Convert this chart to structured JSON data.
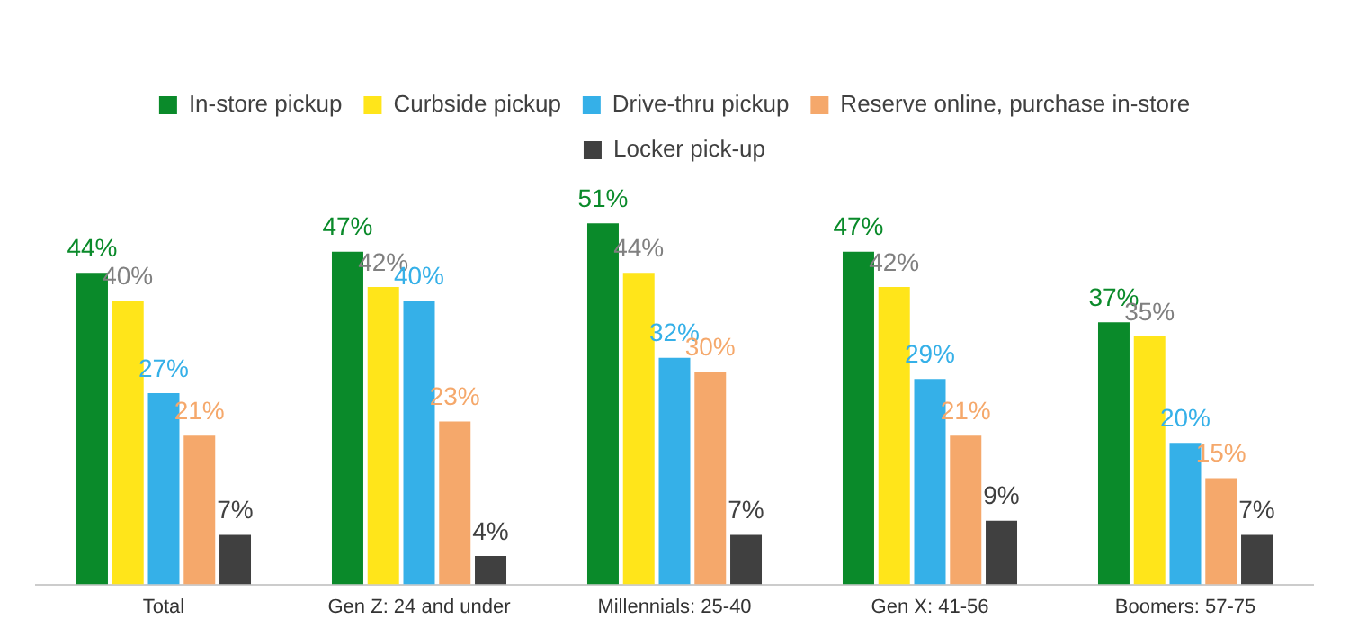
{
  "chart_data": {
    "type": "bar",
    "categories": [
      "Total",
      "Gen Z: 24 and under",
      "Millennials: 25-40",
      "Gen X: 41-56",
      "Boomers: 57-75"
    ],
    "series": [
      {
        "name": "In-store pickup",
        "color": "#0a8a2a",
        "values": [
          44,
          47,
          51,
          47,
          37
        ],
        "value_labels": [
          "44%",
          "47%",
          "51%",
          "47%",
          "37%"
        ]
      },
      {
        "name": "Curbside pickup",
        "color": "#ffe51a",
        "values": [
          40,
          42,
          44,
          42,
          35
        ],
        "value_labels": [
          "40%",
          "42%",
          "44%",
          "42%",
          "35%"
        ]
      },
      {
        "name": "Drive-thru pickup",
        "color": "#35b0e8",
        "values": [
          27,
          40,
          32,
          29,
          20
        ],
        "value_labels": [
          "27%",
          "40%",
          "32%",
          "29%",
          "20%"
        ]
      },
      {
        "name": "Reserve online, purchase in-store",
        "color": "#f5a86b",
        "values": [
          21,
          23,
          30,
          21,
          15
        ],
        "value_labels": [
          "21%",
          "23%",
          "30%",
          "21%",
          "15%"
        ]
      },
      {
        "name": "Locker pick-up",
        "color": "#404040",
        "values": [
          7,
          4,
          7,
          9,
          7
        ],
        "value_labels": [
          "7%",
          "4%",
          "7%",
          "9%",
          "7%"
        ]
      }
    ],
    "legend": "top",
    "grid": false,
    "tick_labels": "x"
  }
}
